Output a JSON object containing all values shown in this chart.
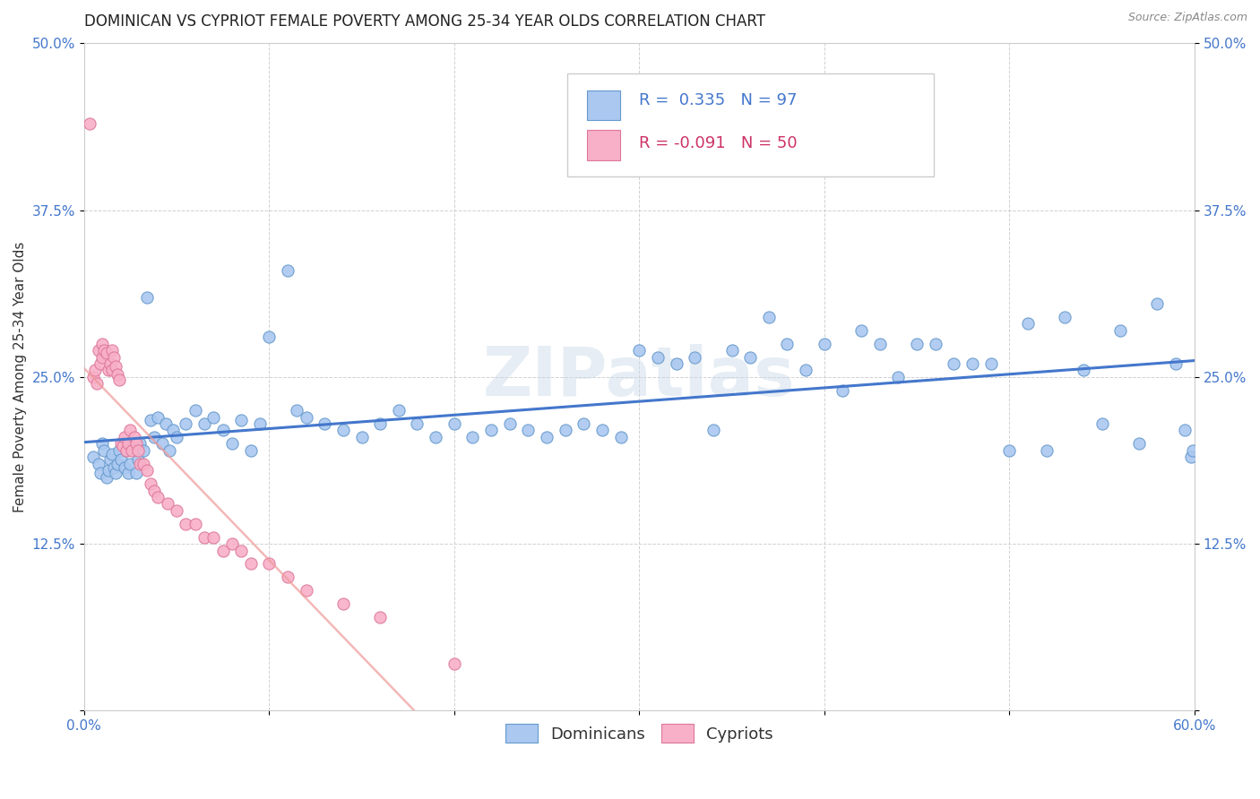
{
  "title": "DOMINICAN VS CYPRIOT FEMALE POVERTY AMONG 25-34 YEAR OLDS CORRELATION CHART",
  "source": "Source: ZipAtlas.com",
  "ylabel": "Female Poverty Among 25-34 Year Olds",
  "xlim": [
    0.0,
    0.6
  ],
  "ylim": [
    0.0,
    0.5
  ],
  "xtick_positions": [
    0.0,
    0.1,
    0.2,
    0.3,
    0.4,
    0.5,
    0.6
  ],
  "ytick_positions": [
    0.0,
    0.125,
    0.25,
    0.375,
    0.5
  ],
  "xtick_labels": [
    "0.0%",
    "",
    "",
    "",
    "",
    "",
    "60.0%"
  ],
  "ytick_labels_left": [
    "",
    "12.5%",
    "25.0%",
    "37.5%",
    "50.0%"
  ],
  "ytick_labels_right": [
    "",
    "12.5%",
    "25.0%",
    "37.5%",
    "50.0%"
  ],
  "dominican_color": "#aac8f0",
  "cypriot_color": "#f8b0c8",
  "dominican_edge": "#6699cc",
  "cypriot_edge": "#dd7799",
  "line_dominican": "#4477cc",
  "line_cypriot": "#ee9999",
  "background_color": "#ffffff",
  "grid_color": "#cccccc",
  "watermark": "ZIPatlas",
  "watermark_color": "#c8d8e8",
  "watermark_alpha": 0.45,
  "title_fontsize": 12,
  "axis_label_fontsize": 11,
  "tick_fontsize": 11,
  "legend_fontsize": 13,
  "tick_color": "#4477cc",
  "dom_scatter_x": [
    0.005,
    0.008,
    0.009,
    0.01,
    0.011,
    0.012,
    0.013,
    0.014,
    0.015,
    0.016,
    0.017,
    0.018,
    0.019,
    0.02,
    0.021,
    0.022,
    0.023,
    0.024,
    0.025,
    0.026,
    0.027,
    0.028,
    0.029,
    0.03,
    0.032,
    0.034,
    0.036,
    0.038,
    0.04,
    0.042,
    0.044,
    0.046,
    0.048,
    0.05,
    0.055,
    0.06,
    0.065,
    0.07,
    0.075,
    0.08,
    0.085,
    0.09,
    0.095,
    0.1,
    0.11,
    0.115,
    0.12,
    0.13,
    0.14,
    0.15,
    0.16,
    0.17,
    0.18,
    0.19,
    0.2,
    0.21,
    0.22,
    0.23,
    0.24,
    0.25,
    0.26,
    0.27,
    0.28,
    0.29,
    0.3,
    0.31,
    0.32,
    0.33,
    0.34,
    0.35,
    0.36,
    0.37,
    0.38,
    0.39,
    0.4,
    0.41,
    0.42,
    0.43,
    0.44,
    0.45,
    0.46,
    0.47,
    0.48,
    0.49,
    0.5,
    0.51,
    0.52,
    0.53,
    0.54,
    0.55,
    0.56,
    0.57,
    0.58,
    0.59,
    0.595,
    0.598,
    0.599
  ],
  "dom_scatter_y": [
    0.19,
    0.185,
    0.178,
    0.2,
    0.195,
    0.175,
    0.18,
    0.188,
    0.192,
    0.182,
    0.178,
    0.185,
    0.195,
    0.188,
    0.2,
    0.182,
    0.195,
    0.178,
    0.185,
    0.2,
    0.195,
    0.178,
    0.188,
    0.2,
    0.195,
    0.31,
    0.218,
    0.205,
    0.22,
    0.2,
    0.215,
    0.195,
    0.21,
    0.205,
    0.215,
    0.225,
    0.215,
    0.22,
    0.21,
    0.2,
    0.218,
    0.195,
    0.215,
    0.28,
    0.33,
    0.225,
    0.22,
    0.215,
    0.21,
    0.205,
    0.215,
    0.225,
    0.215,
    0.205,
    0.215,
    0.205,
    0.21,
    0.215,
    0.21,
    0.205,
    0.21,
    0.215,
    0.21,
    0.205,
    0.27,
    0.265,
    0.26,
    0.265,
    0.21,
    0.27,
    0.265,
    0.295,
    0.275,
    0.255,
    0.275,
    0.24,
    0.285,
    0.275,
    0.25,
    0.275,
    0.275,
    0.26,
    0.26,
    0.26,
    0.195,
    0.29,
    0.195,
    0.295,
    0.255,
    0.215,
    0.285,
    0.2,
    0.305,
    0.26,
    0.21,
    0.19,
    0.195
  ],
  "cyp_scatter_x": [
    0.003,
    0.005,
    0.006,
    0.007,
    0.008,
    0.009,
    0.01,
    0.01,
    0.011,
    0.012,
    0.013,
    0.014,
    0.015,
    0.015,
    0.016,
    0.017,
    0.018,
    0.019,
    0.02,
    0.021,
    0.022,
    0.023,
    0.024,
    0.025,
    0.026,
    0.027,
    0.028,
    0.029,
    0.03,
    0.032,
    0.034,
    0.036,
    0.038,
    0.04,
    0.045,
    0.05,
    0.055,
    0.06,
    0.065,
    0.07,
    0.075,
    0.08,
    0.085,
    0.09,
    0.1,
    0.11,
    0.12,
    0.14,
    0.16,
    0.2
  ],
  "cyp_scatter_y": [
    0.44,
    0.25,
    0.255,
    0.245,
    0.27,
    0.26,
    0.275,
    0.265,
    0.27,
    0.268,
    0.255,
    0.26,
    0.27,
    0.255,
    0.265,
    0.258,
    0.252,
    0.248,
    0.2,
    0.198,
    0.205,
    0.195,
    0.2,
    0.21,
    0.195,
    0.205,
    0.2,
    0.195,
    0.185,
    0.185,
    0.18,
    0.17,
    0.165,
    0.16,
    0.155,
    0.15,
    0.14,
    0.14,
    0.13,
    0.13,
    0.12,
    0.125,
    0.12,
    0.11,
    0.11,
    0.1,
    0.09,
    0.08,
    0.07,
    0.035
  ]
}
